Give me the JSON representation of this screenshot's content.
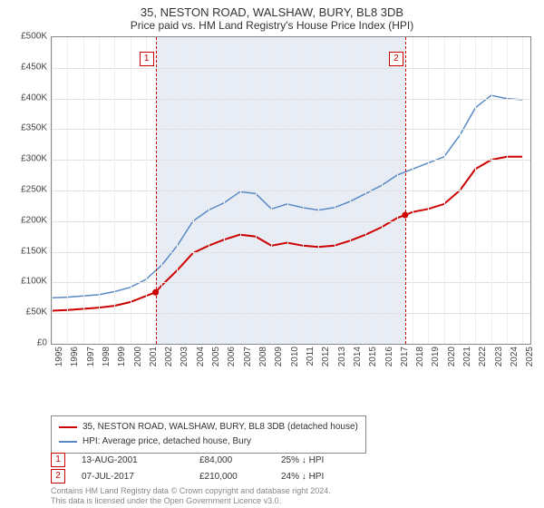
{
  "title_line1": "35, NESTON ROAD, WALSHAW, BURY, BL8 3DB",
  "title_line2": "Price paid vs. HM Land Registry's House Price Index (HPI)",
  "chart": {
    "type": "line",
    "x_years": [
      1995,
      1996,
      1997,
      1998,
      1999,
      2000,
      2001,
      2002,
      2003,
      2004,
      2005,
      2006,
      2007,
      2008,
      2009,
      2010,
      2011,
      2012,
      2013,
      2014,
      2015,
      2016,
      2017,
      2018,
      2019,
      2020,
      2021,
      2022,
      2023,
      2024,
      2025
    ],
    "x_min": 1995,
    "x_max": 2025.5,
    "ylim": [
      0,
      500000
    ],
    "ytick_step": 50000,
    "y_prefix": "£",
    "y_suffix_k": "K",
    "grid_color": "#e0e0e0",
    "vgrid_color": "#eeeeee",
    "background_color": "#ffffff",
    "plot_border_color": "#888888",
    "shaded_band": {
      "x_from": 2001.62,
      "x_to": 2017.52,
      "color": "#e8edf5"
    },
    "sale_marker_color": "#cc0000",
    "series": [
      {
        "name": "35, NESTON ROAD, WALSHAW, BURY, BL8 3DB (detached house)",
        "color": "#cc0000",
        "line_width": 2,
        "points": [
          [
            1995,
            54000
          ],
          [
            1996,
            55000
          ],
          [
            1997,
            57000
          ],
          [
            1998,
            59000
          ],
          [
            1999,
            62000
          ],
          [
            2000,
            68000
          ],
          [
            2001,
            78000
          ],
          [
            2001.62,
            84000
          ],
          [
            2002,
            95000
          ],
          [
            2003,
            120000
          ],
          [
            2004,
            148000
          ],
          [
            2005,
            160000
          ],
          [
            2006,
            170000
          ],
          [
            2007,
            178000
          ],
          [
            2008,
            175000
          ],
          [
            2009,
            160000
          ],
          [
            2010,
            165000
          ],
          [
            2011,
            160000
          ],
          [
            2012,
            158000
          ],
          [
            2013,
            160000
          ],
          [
            2014,
            168000
          ],
          [
            2015,
            178000
          ],
          [
            2016,
            190000
          ],
          [
            2017,
            205000
          ],
          [
            2017.52,
            210000
          ],
          [
            2018,
            215000
          ],
          [
            2019,
            220000
          ],
          [
            2020,
            228000
          ],
          [
            2021,
            250000
          ],
          [
            2022,
            285000
          ],
          [
            2023,
            300000
          ],
          [
            2024,
            305000
          ],
          [
            2025,
            305000
          ]
        ]
      },
      {
        "name": "HPI: Average price, detached house, Bury",
        "color": "#5a8ac6",
        "line_width": 1.5,
        "points": [
          [
            1995,
            75000
          ],
          [
            1996,
            76000
          ],
          [
            1997,
            78000
          ],
          [
            1998,
            80000
          ],
          [
            1999,
            85000
          ],
          [
            2000,
            92000
          ],
          [
            2001,
            105000
          ],
          [
            2002,
            128000
          ],
          [
            2003,
            160000
          ],
          [
            2004,
            200000
          ],
          [
            2005,
            218000
          ],
          [
            2006,
            230000
          ],
          [
            2007,
            248000
          ],
          [
            2008,
            245000
          ],
          [
            2009,
            220000
          ],
          [
            2010,
            228000
          ],
          [
            2011,
            222000
          ],
          [
            2012,
            218000
          ],
          [
            2013,
            222000
          ],
          [
            2014,
            232000
          ],
          [
            2015,
            245000
          ],
          [
            2016,
            258000
          ],
          [
            2017,
            275000
          ],
          [
            2018,
            285000
          ],
          [
            2019,
            295000
          ],
          [
            2020,
            305000
          ],
          [
            2021,
            340000
          ],
          [
            2022,
            385000
          ],
          [
            2023,
            405000
          ],
          [
            2024,
            400000
          ],
          [
            2025,
            398000
          ]
        ]
      }
    ],
    "sale_points": [
      {
        "n": "1",
        "x": 2001.62,
        "y": 84000
      },
      {
        "n": "2",
        "x": 2017.52,
        "y": 210000
      }
    ]
  },
  "legend": {
    "border_color": "#888888",
    "items": [
      {
        "color": "#cc0000",
        "label": "35, NESTON ROAD, WALSHAW, BURY, BL8 3DB (detached house)"
      },
      {
        "color": "#5a8ac6",
        "label": "HPI: Average price, detached house, Bury"
      }
    ]
  },
  "sales_table": {
    "rows": [
      {
        "n": "1",
        "date": "13-AUG-2001",
        "price": "£84,000",
        "diff": "25% ↓ HPI"
      },
      {
        "n": "2",
        "date": "07-JUL-2017",
        "price": "£210,000",
        "diff": "24% ↓ HPI"
      }
    ]
  },
  "footer_line1": "Contains HM Land Registry data © Crown copyright and database right 2024.",
  "footer_line2": "This data is licensed under the Open Government Licence v3.0."
}
